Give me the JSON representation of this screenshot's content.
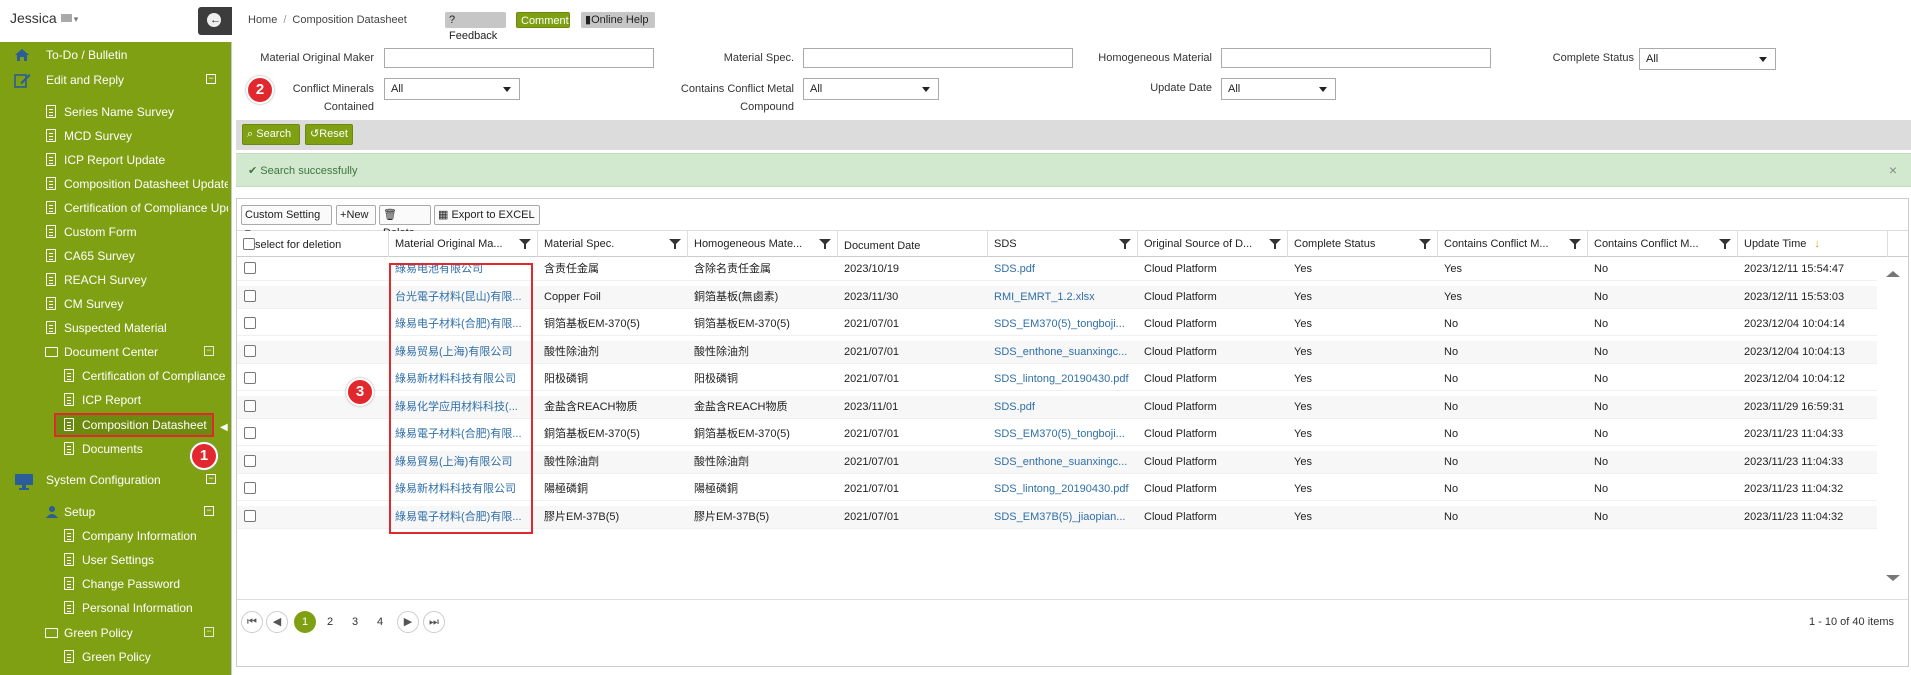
{
  "user": {
    "name": "Jessica"
  },
  "sidebar": {
    "items": [
      {
        "label": "To-Do / Bulletin",
        "icon": "home-icon"
      },
      {
        "label": "Edit and Reply",
        "icon": "edit-icon",
        "toggle": "⊟"
      },
      {
        "label": "Series Name Survey"
      },
      {
        "label": "MCD Survey"
      },
      {
        "label": "ICP Report Update"
      },
      {
        "label": "Composition Datasheet Update"
      },
      {
        "label": "Certification of Compliance Update"
      },
      {
        "label": "Custom Form"
      },
      {
        "label": "CA65 Survey"
      },
      {
        "label": "REACH Survey"
      },
      {
        "label": "CM Survey"
      },
      {
        "label": "Suspected Material"
      },
      {
        "label": "Document Center",
        "toggle": "⊟"
      },
      {
        "label": "Certification of Compliance"
      },
      {
        "label": "ICP Report"
      },
      {
        "label": "Composition Datasheet"
      },
      {
        "label": "Documents"
      },
      {
        "label": "System Configuration",
        "icon": "monitor-icon",
        "toggle": "⊟"
      },
      {
        "label": "Setup",
        "toggle": "⊟"
      },
      {
        "label": "Company Information"
      },
      {
        "label": "User Settings"
      },
      {
        "label": "Change Password"
      },
      {
        "label": "Personal Information"
      },
      {
        "label": "Green Policy",
        "toggle": "⊟"
      },
      {
        "label": "Green Policy"
      }
    ]
  },
  "header": {
    "breadcrumb": [
      "Home",
      "Composition Datasheet"
    ],
    "feedback": "Feedback",
    "comment": "Comment",
    "help": "Online Help"
  },
  "filters": {
    "maker_label": "Material Original Maker",
    "spec_label": "Material Spec.",
    "homogeneous_label": "Homogeneous Material",
    "complete_label": "Complete Status",
    "complete_value": "All",
    "conflict_label_1": "Conflict Minerals",
    "conflict_label_2": "Contained",
    "conflict_value": "All",
    "compound_label_1": "Contains Conflict Metal",
    "compound_label_2": "Compound",
    "compound_value": "All",
    "update_label": "Update Date",
    "update_value": "All"
  },
  "actions": {
    "search": "Search",
    "reset": "Reset"
  },
  "message": "Search successfully",
  "toolbar": {
    "custom": "Custom Setting",
    "new": "New",
    "delete": "Delete",
    "export": "Export to EXCEL"
  },
  "columns": [
    "select for deletion",
    "Material Original Ma...",
    "Material Spec.",
    "Homogeneous Mate...",
    "Document Date",
    "SDS",
    "Original Source of D...",
    "Complete Status",
    "Contains Conflict M...",
    "Contains Conflict M...",
    "Update Time"
  ],
  "rows": [
    [
      "綠易电池有限公司",
      "含责任金属",
      "含除名责任金属",
      "2023/10/19",
      "SDS.pdf",
      "Cloud Platform",
      "Yes",
      "Yes",
      "No",
      "2023/12/11 15:54:47"
    ],
    [
      "台光電子材料(昆山)有限...",
      "Copper Foil",
      "銅箔基板(無鹵素)",
      "2023/11/30",
      "RMI_EMRT_1.2.xlsx",
      "Cloud Platform",
      "Yes",
      "Yes",
      "No",
      "2023/12/11 15:53:03"
    ],
    [
      "綠易电子材料(合肥)有限...",
      "铜箔基板EM-370(5)",
      "铜箔基板EM-370(5)",
      "2021/07/01",
      "SDS_EM370(5)_tongboji...",
      "Cloud Platform",
      "Yes",
      "No",
      "No",
      "2023/12/04 10:04:14"
    ],
    [
      "綠易贸易(上海)有限公司",
      "酸性除油剂",
      "酸性除油剂",
      "2021/07/01",
      "SDS_enthone_suanxingc...",
      "Cloud Platform",
      "Yes",
      "No",
      "No",
      "2023/12/04 10:04:13"
    ],
    [
      "綠易新材料科技有限公司",
      "阳极磷铜",
      "阳极磷铜",
      "2021/07/01",
      "SDS_lintong_20190430.pdf",
      "Cloud Platform",
      "Yes",
      "No",
      "No",
      "2023/12/04 10:04:12"
    ],
    [
      "綠易化学应用材料科技(...",
      "金盐含REACH物质",
      "金盐含REACH物质",
      "2023/11/01",
      "SDS.pdf",
      "Cloud Platform",
      "Yes",
      "No",
      "No",
      "2023/11/29 16:59:31"
    ],
    [
      "綠易電子材料(合肥)有限...",
      "銅箔基板EM-370(5)",
      "銅箔基板EM-370(5)",
      "2021/07/01",
      "SDS_EM370(5)_tongboji...",
      "Cloud Platform",
      "Yes",
      "No",
      "No",
      "2023/11/23 11:04:33"
    ],
    [
      "綠易貿易(上海)有限公司",
      "酸性除油劑",
      "酸性除油劑",
      "2021/07/01",
      "SDS_enthone_suanxingc...",
      "Cloud Platform",
      "Yes",
      "No",
      "No",
      "2023/11/23 11:04:33"
    ],
    [
      "綠易新材料科技有限公司",
      "陽極磷銅",
      "陽極磷銅",
      "2021/07/01",
      "SDS_lintong_20190430.pdf",
      "Cloud Platform",
      "Yes",
      "No",
      "No",
      "2023/11/23 11:04:32"
    ],
    [
      "綠易電子材料(合肥)有限...",
      "膠片EM-37B(5)",
      "膠片EM-37B(5)",
      "2021/07/01",
      "SDS_EM37B(5)_jiaopian...",
      "Cloud Platform",
      "Yes",
      "No",
      "No",
      "2023/11/23 11:04:32"
    ]
  ],
  "pager": {
    "pages": [
      "1",
      "2",
      "3",
      "4"
    ],
    "first": "⏮",
    "prev": "◀",
    "next": "▶",
    "last": "⏭",
    "info": "1 - 10 of 40 items"
  },
  "badges": [
    "1",
    "2",
    "3"
  ],
  "colors": {
    "accent": "#7ea012",
    "highlight": "#e0282e",
    "link": "#2f6fa7"
  }
}
